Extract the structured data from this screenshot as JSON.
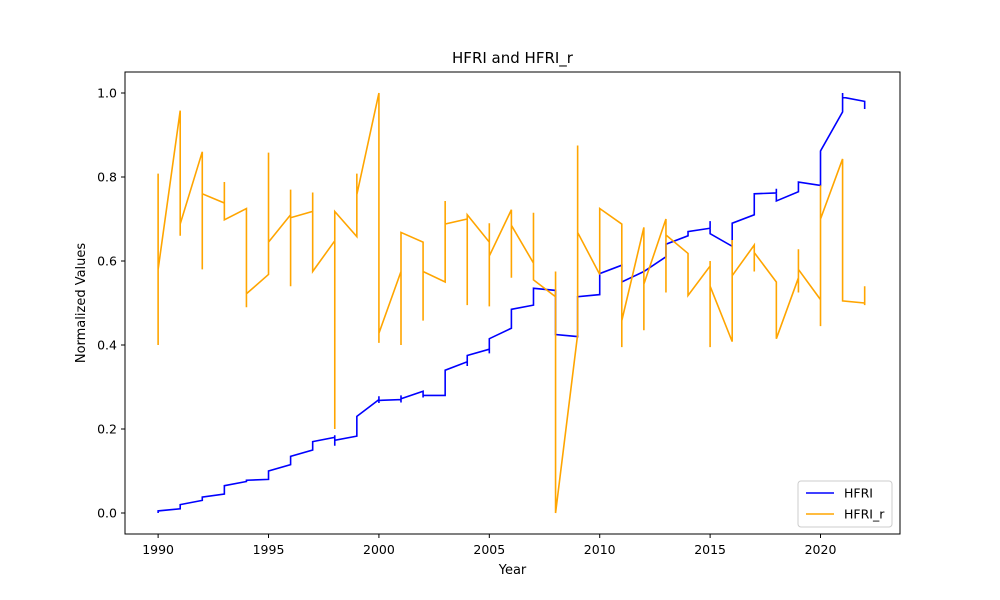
{
  "chart_data": {
    "type": "line",
    "title": "HFRI and HFRI_r",
    "xlabel": "Year",
    "ylabel": "Normalized Values",
    "xlim": [
      1988.5,
      2023.6
    ],
    "ylim": [
      -0.05,
      1.05
    ],
    "xticks": [
      1990,
      1995,
      2000,
      2005,
      2010,
      2015,
      2020
    ],
    "yticks": [
      0.0,
      0.2,
      0.4,
      0.6,
      0.8,
      1.0
    ],
    "ytick_labels": [
      "0.0",
      "0.2",
      "0.4",
      "0.6",
      "0.8",
      "1.0"
    ],
    "grid": false,
    "legend_position": "lower-right",
    "series": [
      {
        "name": "HFRI",
        "color": "#0000ff",
        "points": [
          [
            1990,
            0.0
          ],
          [
            1990,
            0.005
          ],
          [
            1991,
            0.01
          ],
          [
            1991,
            0.02
          ],
          [
            1992,
            0.03
          ],
          [
            1992,
            0.038
          ],
          [
            1993,
            0.045
          ],
          [
            1993,
            0.065
          ],
          [
            1994,
            0.075
          ],
          [
            1994,
            0.078
          ],
          [
            1995,
            0.08
          ],
          [
            1995,
            0.1
          ],
          [
            1996,
            0.115
          ],
          [
            1996,
            0.135
          ],
          [
            1997,
            0.15
          ],
          [
            1997,
            0.17
          ],
          [
            1998,
            0.18
          ],
          [
            1998,
            0.16
          ],
          [
            1998,
            0.185
          ],
          [
            1998,
            0.173
          ],
          [
            1999,
            0.183
          ],
          [
            1999,
            0.23
          ],
          [
            2000,
            0.27
          ],
          [
            2000,
            0.262
          ],
          [
            2000,
            0.278
          ],
          [
            2000,
            0.268
          ],
          [
            2001,
            0.27
          ],
          [
            2001,
            0.263
          ],
          [
            2001,
            0.28
          ],
          [
            2001,
            0.272
          ],
          [
            2002,
            0.29
          ],
          [
            2002,
            0.275
          ],
          [
            2002,
            0.28
          ],
          [
            2003,
            0.28
          ],
          [
            2003,
            0.34
          ],
          [
            2004,
            0.36
          ],
          [
            2004,
            0.35
          ],
          [
            2004,
            0.375
          ],
          [
            2005,
            0.39
          ],
          [
            2005,
            0.38
          ],
          [
            2005,
            0.415
          ],
          [
            2006,
            0.44
          ],
          [
            2006,
            0.485
          ],
          [
            2007,
            0.495
          ],
          [
            2007,
            0.535
          ],
          [
            2008,
            0.53
          ],
          [
            2008,
            0.425
          ],
          [
            2009,
            0.42
          ],
          [
            2009,
            0.515
          ],
          [
            2010,
            0.52
          ],
          [
            2010,
            0.57
          ],
          [
            2011,
            0.59
          ],
          [
            2011,
            0.55
          ],
          [
            2012,
            0.575
          ],
          [
            2013,
            0.61
          ],
          [
            2013,
            0.64
          ],
          [
            2014,
            0.66
          ],
          [
            2014,
            0.67
          ],
          [
            2015,
            0.678
          ],
          [
            2015,
            0.695
          ],
          [
            2015,
            0.665
          ],
          [
            2016,
            0.635
          ],
          [
            2016,
            0.69
          ],
          [
            2017,
            0.71
          ],
          [
            2017,
            0.76
          ],
          [
            2018,
            0.762
          ],
          [
            2018,
            0.772
          ],
          [
            2018,
            0.743
          ],
          [
            2019,
            0.765
          ],
          [
            2019,
            0.788
          ],
          [
            2020,
            0.78
          ],
          [
            2020,
            0.862
          ],
          [
            2021,
            0.955
          ],
          [
            2021,
            1.0
          ],
          [
            2021,
            0.99
          ],
          [
            2022,
            0.98
          ],
          [
            2022,
            0.962
          ]
        ]
      },
      {
        "name": "HFRI_r",
        "color": "#ffa500",
        "points": [
          [
            1990,
            0.4
          ],
          [
            1990,
            0.808
          ],
          [
            1990,
            0.58
          ],
          [
            1991,
            0.958
          ],
          [
            1991,
            0.66
          ],
          [
            1991,
            0.688
          ],
          [
            1992,
            0.86
          ],
          [
            1992,
            0.58
          ],
          [
            1992,
            0.76
          ],
          [
            1993,
            0.738
          ],
          [
            1993,
            0.788
          ],
          [
            1993,
            0.698
          ],
          [
            1994,
            0.725
          ],
          [
            1994,
            0.49
          ],
          [
            1994,
            0.522
          ],
          [
            1995,
            0.568
          ],
          [
            1995,
            0.858
          ],
          [
            1995,
            0.645
          ],
          [
            1996,
            0.71
          ],
          [
            1996,
            0.54
          ],
          [
            1996,
            0.77
          ],
          [
            1996,
            0.703
          ],
          [
            1997,
            0.718
          ],
          [
            1997,
            0.763
          ],
          [
            1997,
            0.575
          ],
          [
            1998,
            0.648
          ],
          [
            1998,
            0.2
          ],
          [
            1998,
            0.718
          ],
          [
            1999,
            0.658
          ],
          [
            1999,
            0.808
          ],
          [
            1999,
            0.758
          ],
          [
            2000,
            1.0
          ],
          [
            2000,
            0.405
          ],
          [
            2000,
            0.428
          ],
          [
            2001,
            0.575
          ],
          [
            2001,
            0.4
          ],
          [
            2001,
            0.668
          ],
          [
            2002,
            0.645
          ],
          [
            2002,
            0.458
          ],
          [
            2002,
            0.575
          ],
          [
            2003,
            0.55
          ],
          [
            2003,
            0.743
          ],
          [
            2003,
            0.688
          ],
          [
            2004,
            0.7
          ],
          [
            2004,
            0.495
          ],
          [
            2004,
            0.71
          ],
          [
            2005,
            0.645
          ],
          [
            2005,
            0.492
          ],
          [
            2005,
            0.69
          ],
          [
            2005,
            0.612
          ],
          [
            2006,
            0.722
          ],
          [
            2006,
            0.56
          ],
          [
            2006,
            0.685
          ],
          [
            2007,
            0.595
          ],
          [
            2007,
            0.715
          ],
          [
            2007,
            0.555
          ],
          [
            2008,
            0.515
          ],
          [
            2008,
            0.575
          ],
          [
            2008,
            0.0
          ],
          [
            2009,
            0.425
          ],
          [
            2009,
            0.875
          ],
          [
            2009,
            0.668
          ],
          [
            2010,
            0.568
          ],
          [
            2010,
            0.725
          ],
          [
            2011,
            0.688
          ],
          [
            2011,
            0.395
          ],
          [
            2011,
            0.458
          ],
          [
            2012,
            0.68
          ],
          [
            2012,
            0.435
          ],
          [
            2012,
            0.545
          ],
          [
            2013,
            0.7
          ],
          [
            2013,
            0.525
          ],
          [
            2013,
            0.662
          ],
          [
            2014,
            0.618
          ],
          [
            2014,
            0.518
          ],
          [
            2015,
            0.588
          ],
          [
            2015,
            0.395
          ],
          [
            2015,
            0.6
          ],
          [
            2015,
            0.54
          ],
          [
            2016,
            0.408
          ],
          [
            2016,
            0.65
          ],
          [
            2016,
            0.565
          ],
          [
            2017,
            0.638
          ],
          [
            2017,
            0.575
          ],
          [
            2017,
            0.62
          ],
          [
            2018,
            0.55
          ],
          [
            2018,
            0.415
          ],
          [
            2019,
            0.56
          ],
          [
            2019,
            0.628
          ],
          [
            2019,
            0.525
          ],
          [
            2019,
            0.58
          ],
          [
            2020,
            0.508
          ],
          [
            2020,
            0.78
          ],
          [
            2020,
            0.445
          ],
          [
            2020,
            0.7
          ],
          [
            2021,
            0.843
          ],
          [
            2021,
            0.505
          ],
          [
            2022,
            0.5
          ],
          [
            2022,
            0.54
          ],
          [
            2022,
            0.495
          ],
          [
            2022,
            0.505
          ]
        ]
      }
    ]
  }
}
